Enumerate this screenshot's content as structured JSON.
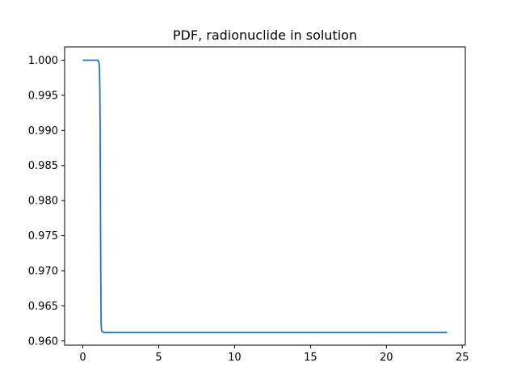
{
  "chart_data": {
    "type": "line",
    "title": "PDF, radionuclide in solution",
    "xlabel": "",
    "ylabel": "",
    "xlim": [
      -1.2,
      25.2
    ],
    "ylim": [
      0.9594,
      1.0019
    ],
    "xticks": [
      0,
      5,
      10,
      15,
      20,
      25
    ],
    "xtick_labels": [
      "0",
      "5",
      "10",
      "15",
      "20",
      "25"
    ],
    "yticks": [
      0.96,
      0.965,
      0.97,
      0.975,
      0.98,
      0.985,
      0.99,
      0.995,
      1.0
    ],
    "ytick_labels": [
      "0.960",
      "0.965",
      "0.970",
      "0.975",
      "0.980",
      "0.985",
      "0.990",
      "0.995",
      "1.000"
    ],
    "grid": false,
    "series": [
      {
        "color": "#1f77b4",
        "x": [
          0,
          0.5,
          1.0,
          1.05,
          1.08,
          1.1,
          1.12,
          1.14,
          1.16,
          1.18,
          1.2,
          1.22,
          1.25,
          1.3,
          1.4,
          1.6,
          2.0,
          5,
          10,
          15,
          20,
          24
        ],
        "y": [
          1.0,
          1.0,
          1.0,
          0.9998,
          0.9994,
          0.9985,
          0.996,
          0.99,
          0.98,
          0.97,
          0.963,
          0.9618,
          0.9614,
          0.9613,
          0.9612,
          0.9612,
          0.9612,
          0.9612,
          0.9612,
          0.9612,
          0.9612,
          0.9612
        ]
      }
    ]
  }
}
